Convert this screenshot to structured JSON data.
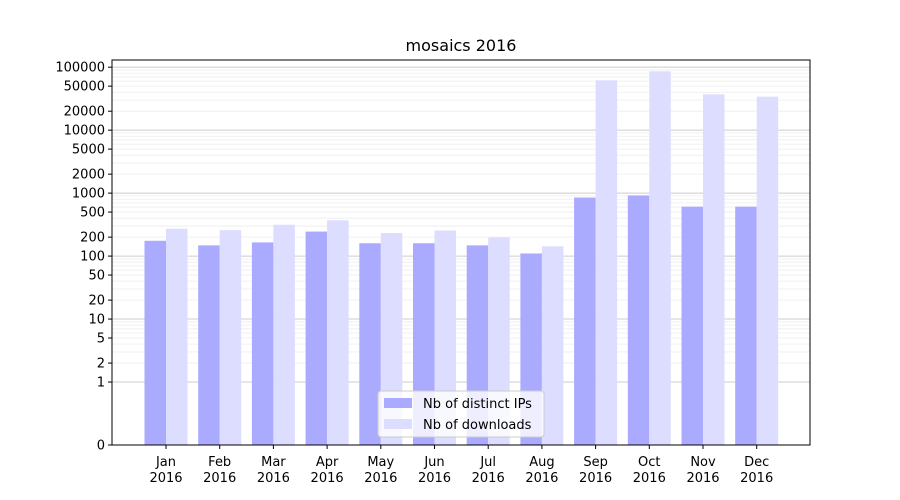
{
  "chart_data": {
    "type": "bar",
    "title": "mosaics 2016",
    "xlabel": "",
    "ylabel": "",
    "yscale": "symlog",
    "ylim": [
      0,
      130000
    ],
    "grid": true,
    "legend_position": "lower-center",
    "categories": [
      [
        "Jan",
        "2016"
      ],
      [
        "Feb",
        "2016"
      ],
      [
        "Mar",
        "2016"
      ],
      [
        "Apr",
        "2016"
      ],
      [
        "May",
        "2016"
      ],
      [
        "Jun",
        "2016"
      ],
      [
        "Jul",
        "2016"
      ],
      [
        "Aug",
        "2016"
      ],
      [
        "Sep",
        "2016"
      ],
      [
        "Oct",
        "2016"
      ],
      [
        "Nov",
        "2016"
      ],
      [
        "Dec",
        "2016"
      ]
    ],
    "y_ticks": [
      {
        "value": 0,
        "label": "0"
      },
      {
        "value": 1,
        "label": "1"
      },
      {
        "value": 2,
        "label": "2"
      },
      {
        "value": 5,
        "label": "5"
      },
      {
        "value": 10,
        "label": "10"
      },
      {
        "value": 20,
        "label": "20"
      },
      {
        "value": 50,
        "label": "50"
      },
      {
        "value": 100,
        "label": "100"
      },
      {
        "value": 200,
        "label": "200"
      },
      {
        "value": 500,
        "label": "500"
      },
      {
        "value": 1000,
        "label": "1000"
      },
      {
        "value": 2000,
        "label": "2000"
      },
      {
        "value": 5000,
        "label": "5000"
      },
      {
        "value": 10000,
        "label": "10000"
      },
      {
        "value": 20000,
        "label": "20000"
      },
      {
        "value": 50000,
        "label": "50000"
      },
      {
        "value": 100000,
        "label": "100000"
      }
    ],
    "series": [
      {
        "name": "Nb of distinct IPs",
        "color": "#aaaaff",
        "values": [
          175,
          148,
          165,
          245,
          160,
          160,
          148,
          110,
          850,
          920,
          610,
          610
        ]
      },
      {
        "name": "Nb of downloads",
        "color": "#ddddff",
        "values": [
          272,
          258,
          315,
          370,
          232,
          255,
          198,
          143,
          62000,
          86000,
          37000,
          34000
        ]
      }
    ]
  }
}
